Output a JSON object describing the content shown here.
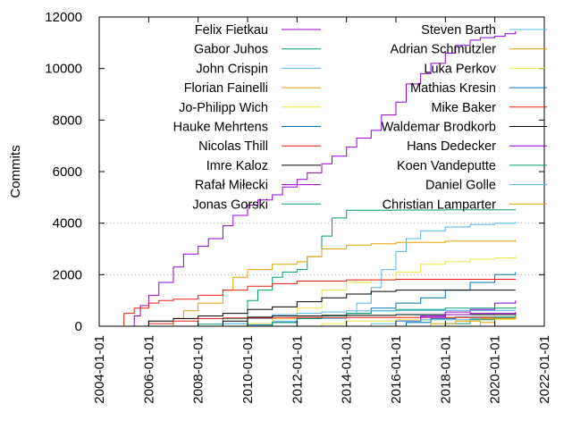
{
  "chart_data": {
    "type": "line",
    "title": "",
    "xlabel": "",
    "ylabel": "Commits",
    "xlim": [
      "2004-01-01",
      "2022-01-01"
    ],
    "ylim": [
      0,
      12000
    ],
    "x_ticks": [
      "2004-01-01",
      "2006-01-01",
      "2008-01-01",
      "2010-01-01",
      "2012-01-01",
      "2014-01-01",
      "2016-01-01",
      "2018-01-01",
      "2020-01-01",
      "2022-01-01"
    ],
    "y_ticks": [
      "0",
      "2000",
      "4000",
      "6000",
      "8000",
      "10000",
      "12000"
    ],
    "grid": "horizontal dotted at 2000 and 4000",
    "legend_position": "top",
    "series": [
      {
        "name": "Felix Fietkau",
        "color": "#9400d3",
        "points": [
          [
            "2005-03-01",
            0
          ],
          [
            "2005-06-01",
            400
          ],
          [
            "2005-09-01",
            800
          ],
          [
            "2006-01-01",
            1200
          ],
          [
            "2006-06-01",
            1700
          ],
          [
            "2007-01-01",
            2300
          ],
          [
            "2007-06-01",
            2800
          ],
          [
            "2008-01-01",
            3100
          ],
          [
            "2008-06-01",
            3400
          ],
          [
            "2009-01-01",
            3900
          ],
          [
            "2009-06-01",
            4300
          ],
          [
            "2010-01-01",
            4700
          ],
          [
            "2010-06-01",
            4900
          ],
          [
            "2011-01-01",
            5100
          ],
          [
            "2011-06-01",
            5400
          ],
          [
            "2012-01-01",
            5700
          ],
          [
            "2012-06-01",
            5950
          ],
          [
            "2013-01-01",
            6300
          ],
          [
            "2013-06-01",
            6600
          ],
          [
            "2014-01-01",
            6950
          ],
          [
            "2014-06-01",
            7300
          ],
          [
            "2015-01-01",
            7600
          ],
          [
            "2015-06-01",
            8200
          ],
          [
            "2016-01-01",
            8700
          ],
          [
            "2016-06-01",
            9400
          ],
          [
            "2017-01-01",
            9800
          ],
          [
            "2017-06-01",
            10200
          ],
          [
            "2018-01-01",
            10600
          ],
          [
            "2018-06-01",
            10900
          ],
          [
            "2019-01-01",
            11100
          ],
          [
            "2019-06-01",
            11200
          ],
          [
            "2020-01-01",
            11250
          ],
          [
            "2020-06-01",
            11350
          ],
          [
            "2020-11-01",
            11450
          ]
        ]
      },
      {
        "name": "Gabor Juhos",
        "color": "#009e73",
        "points": [
          [
            "2007-01-01",
            0
          ],
          [
            "2008-01-01",
            80
          ],
          [
            "2009-01-01",
            300
          ],
          [
            "2010-01-01",
            1000
          ],
          [
            "2010-06-01",
            1400
          ],
          [
            "2011-01-01",
            1900
          ],
          [
            "2011-06-01",
            2100
          ],
          [
            "2012-01-01",
            2200
          ],
          [
            "2012-06-01",
            2700
          ],
          [
            "2013-01-01",
            3500
          ],
          [
            "2013-06-01",
            4200
          ],
          [
            "2014-01-01",
            4500
          ],
          [
            "2015-01-01",
            4500
          ],
          [
            "2016-01-01",
            4510
          ],
          [
            "2018-01-01",
            4520
          ],
          [
            "2020-11-01",
            4530
          ]
        ]
      },
      {
        "name": "John Crispin",
        "color": "#56b4e9",
        "points": [
          [
            "2007-01-01",
            0
          ],
          [
            "2009-01-01",
            100
          ],
          [
            "2011-01-01",
            200
          ],
          [
            "2012-01-01",
            300
          ],
          [
            "2013-01-01",
            300
          ],
          [
            "2014-01-01",
            500
          ],
          [
            "2014-06-01",
            900
          ],
          [
            "2015-01-01",
            1500
          ],
          [
            "2015-06-01",
            2200
          ],
          [
            "2016-01-01",
            2900
          ],
          [
            "2016-06-01",
            3400
          ],
          [
            "2017-01-01",
            3700
          ],
          [
            "2018-01-01",
            3850
          ],
          [
            "2019-01-01",
            3950
          ],
          [
            "2020-01-01",
            4000
          ],
          [
            "2020-11-01",
            4050
          ]
        ]
      },
      {
        "name": "Florian Fainelli",
        "color": "#e69f00",
        "points": [
          [
            "2006-01-01",
            0
          ],
          [
            "2007-01-01",
            300
          ],
          [
            "2007-06-01",
            600
          ],
          [
            "2008-01-01",
            900
          ],
          [
            "2009-01-01",
            1400
          ],
          [
            "2009-06-01",
            1900
          ],
          [
            "2010-01-01",
            2200
          ],
          [
            "2011-01-01",
            2400
          ],
          [
            "2012-01-01",
            2500
          ],
          [
            "2012-06-01",
            2700
          ],
          [
            "2013-01-01",
            3000
          ],
          [
            "2014-01-01",
            3150
          ],
          [
            "2015-01-01",
            3200
          ],
          [
            "2016-01-01",
            3250
          ],
          [
            "2018-01-01",
            3300
          ],
          [
            "2020-11-01",
            3350
          ]
        ]
      },
      {
        "name": "Jo-Philipp Wich",
        "color": "#f0e442",
        "points": [
          [
            "2008-01-01",
            0
          ],
          [
            "2010-01-01",
            100
          ],
          [
            "2011-01-01",
            300
          ],
          [
            "2012-01-01",
            700
          ],
          [
            "2013-01-01",
            1400
          ],
          [
            "2014-01-01",
            1700
          ],
          [
            "2015-01-01",
            1800
          ],
          [
            "2016-01-01",
            2100
          ],
          [
            "2017-01-01",
            2400
          ],
          [
            "2018-01-01",
            2500
          ],
          [
            "2019-01-01",
            2600
          ],
          [
            "2020-01-01",
            2650
          ],
          [
            "2020-11-01",
            2700
          ]
        ]
      },
      {
        "name": "Hauke Mehrtens",
        "color": "#0072b2",
        "points": [
          [
            "2009-01-01",
            0
          ],
          [
            "2010-01-01",
            50
          ],
          [
            "2011-01-01",
            150
          ],
          [
            "2012-01-01",
            300
          ],
          [
            "2013-01-01",
            400
          ],
          [
            "2014-01-01",
            500
          ],
          [
            "2015-01-01",
            700
          ],
          [
            "2016-01-01",
            900
          ],
          [
            "2017-01-01",
            1100
          ],
          [
            "2018-01-01",
            1400
          ],
          [
            "2019-01-01",
            1700
          ],
          [
            "2020-01-01",
            2000
          ],
          [
            "2020-11-01",
            2100
          ]
        ]
      },
      {
        "name": "Nicolas Thill",
        "color": "#e51e10",
        "points": [
          [
            "2004-06-01",
            0
          ],
          [
            "2005-01-01",
            500
          ],
          [
            "2005-06-01",
            700
          ],
          [
            "2006-01-01",
            900
          ],
          [
            "2006-06-01",
            1000
          ],
          [
            "2007-01-01",
            1050
          ],
          [
            "2008-01-01",
            1200
          ],
          [
            "2009-01-01",
            1400
          ],
          [
            "2010-01-01",
            1550
          ],
          [
            "2011-01-01",
            1650
          ],
          [
            "2012-01-01",
            1750
          ],
          [
            "2014-01-01",
            1800
          ],
          [
            "2016-01-01",
            1820
          ],
          [
            "2020-11-01",
            1830
          ]
        ]
      },
      {
        "name": "Imre Kaloz",
        "color": "#000000",
        "points": [
          [
            "2005-01-01",
            0
          ],
          [
            "2006-01-01",
            200
          ],
          [
            "2007-01-01",
            300
          ],
          [
            "2008-01-01",
            400
          ],
          [
            "2009-01-01",
            500
          ],
          [
            "2010-01-01",
            650
          ],
          [
            "2011-01-01",
            750
          ],
          [
            "2012-01-01",
            950
          ],
          [
            "2013-01-01",
            1100
          ],
          [
            "2014-01-01",
            1250
          ],
          [
            "2015-01-01",
            1350
          ],
          [
            "2016-01-01",
            1400
          ],
          [
            "2020-11-01",
            1400
          ]
        ]
      },
      {
        "name": "Rafał Miłecki",
        "color": "#9400d3",
        "points": [
          [
            "2015-01-01",
            0
          ],
          [
            "2016-01-01",
            200
          ],
          [
            "2017-01-01",
            400
          ],
          [
            "2018-01-01",
            550
          ],
          [
            "2019-01-01",
            650
          ],
          [
            "2020-01-01",
            900
          ],
          [
            "2020-11-01",
            1000
          ]
        ]
      },
      {
        "name": "Jonas Gorski",
        "color": "#009e73",
        "points": [
          [
            "2010-01-01",
            0
          ],
          [
            "2011-01-01",
            150
          ],
          [
            "2012-01-01",
            300
          ],
          [
            "2013-01-01",
            400
          ],
          [
            "2014-01-01",
            500
          ],
          [
            "2015-01-01",
            600
          ],
          [
            "2016-01-01",
            650
          ],
          [
            "2018-01-01",
            700
          ],
          [
            "2020-11-01",
            750
          ]
        ]
      },
      {
        "name": "Steven Barth",
        "color": "#56b4e9",
        "points": [
          [
            "2008-01-01",
            0
          ],
          [
            "2009-01-01",
            100
          ],
          [
            "2010-01-01",
            300
          ],
          [
            "2011-01-01",
            450
          ],
          [
            "2012-01-01",
            500
          ],
          [
            "2013-01-01",
            550
          ],
          [
            "2014-01-01",
            600
          ],
          [
            "2016-01-01",
            610
          ],
          [
            "2020-11-01",
            620
          ]
        ]
      },
      {
        "name": "Adrian Schmutzler",
        "color": "#e69f00",
        "points": [
          [
            "2019-01-01",
            0
          ],
          [
            "2019-06-01",
            150
          ],
          [
            "2020-01-01",
            350
          ],
          [
            "2020-11-01",
            550
          ]
        ]
      },
      {
        "name": "Luka Perkov",
        "color": "#f0e442",
        "points": [
          [
            "2012-01-01",
            0
          ],
          [
            "2013-01-01",
            100
          ],
          [
            "2014-01-01",
            200
          ],
          [
            "2016-01-01",
            250
          ],
          [
            "2020-11-01",
            300
          ]
        ]
      },
      {
        "name": "Mathias Kresin",
        "color": "#0072b2",
        "points": [
          [
            "2015-06-01",
            0
          ],
          [
            "2016-06-01",
            150
          ],
          [
            "2017-06-01",
            300
          ],
          [
            "2018-06-01",
            350
          ],
          [
            "2020-11-01",
            400
          ]
        ]
      },
      {
        "name": "Mike Baker",
        "color": "#e51e10",
        "points": [
          [
            "2005-06-01",
            0
          ],
          [
            "2006-01-01",
            100
          ],
          [
            "2007-01-01",
            200
          ],
          [
            "2008-01-01",
            300
          ],
          [
            "2009-01-01",
            320
          ],
          [
            "2012-01-01",
            340
          ],
          [
            "2020-11-01",
            350
          ]
        ]
      },
      {
        "name": "Waldemar Brodkorb",
        "color": "#000000",
        "points": [
          [
            "2008-01-01",
            0
          ],
          [
            "2009-01-01",
            200
          ],
          [
            "2010-01-01",
            350
          ],
          [
            "2011-01-01",
            400
          ],
          [
            "2013-01-01",
            420
          ],
          [
            "2016-01-01",
            450
          ],
          [
            "2020-11-01",
            470
          ]
        ]
      },
      {
        "name": "Hans Dedecker",
        "color": "#9400d3",
        "points": [
          [
            "2015-01-01",
            0
          ],
          [
            "2016-01-01",
            200
          ],
          [
            "2017-01-01",
            350
          ],
          [
            "2018-01-01",
            450
          ],
          [
            "2019-01-01",
            500
          ],
          [
            "2020-11-01",
            550
          ]
        ]
      },
      {
        "name": "Koen Vandeputte",
        "color": "#009e73",
        "points": [
          [
            "2017-06-01",
            0
          ],
          [
            "2018-01-01",
            100
          ],
          [
            "2019-01-01",
            250
          ],
          [
            "2020-01-01",
            350
          ],
          [
            "2020-11-01",
            450
          ]
        ]
      },
      {
        "name": "Daniel Golle",
        "color": "#56b4e9",
        "points": [
          [
            "2014-06-01",
            0
          ],
          [
            "2015-01-01",
            100
          ],
          [
            "2016-01-01",
            200
          ],
          [
            "2017-01-01",
            250
          ],
          [
            "2019-01-01",
            300
          ],
          [
            "2020-11-01",
            400
          ]
        ]
      },
      {
        "name": "Christian Lamparter",
        "color": "#e69f00",
        "points": [
          [
            "2016-06-01",
            0
          ],
          [
            "2017-06-01",
            100
          ],
          [
            "2018-06-01",
            200
          ],
          [
            "2019-06-01",
            300
          ],
          [
            "2020-11-01",
            380
          ]
        ]
      }
    ]
  }
}
